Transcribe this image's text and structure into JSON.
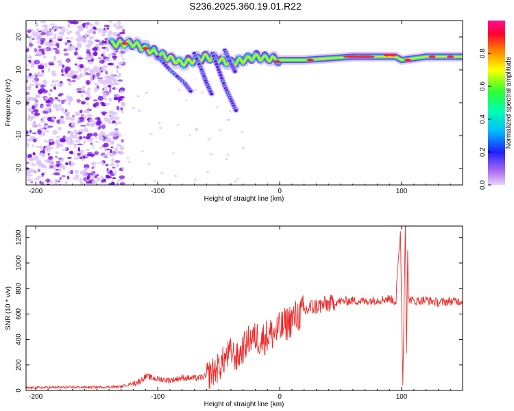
{
  "page": {
    "title": "S236.2025.360.19.01.R22",
    "colors": {
      "snr_line": "#ee2a2a",
      "frame": "#000000",
      "blob": "#7a10e8",
      "blob_light": "#d9c2f7"
    }
  },
  "chart_data": [
    {
      "id": "spectrogram",
      "type": "heatmap",
      "title": "",
      "xlabel": "Height of straight line (km)",
      "ylabel": "Frequency (Hz)",
      "xlim": [
        -208,
        150
      ],
      "ylim": [
        -25,
        25
      ],
      "xticks": [
        -200,
        -100,
        0,
        100
      ],
      "yticks": [
        -20,
        -10,
        0,
        10,
        20
      ],
      "colorbar": {
        "label": "Normalized spectral amplitude",
        "range": [
          0.0,
          1.0
        ],
        "ticks": [
          0.0,
          0.2,
          0.4,
          0.6,
          0.8
        ],
        "tick_labels": [
          "0.0",
          "0.2",
          "0.4",
          "0.6",
          "0.8"
        ]
      },
      "description_series": [
        {
          "name": "main_frequency_ridge",
          "x": [
            -140,
            -120,
            -100,
            -80,
            -60,
            -40,
            -20,
            0,
            20,
            40,
            60,
            80,
            95,
            100,
            120,
            150
          ],
          "frequency_hz": [
            18,
            18,
            15,
            12,
            14,
            12,
            14,
            13,
            13,
            13.5,
            14,
            14,
            14,
            13,
            14,
            14
          ]
        },
        {
          "name": "secondary_branches",
          "x": [
            -75,
            -68,
            -60,
            -52,
            -45,
            -40,
            -36
          ],
          "frequency_hz": [
            5,
            9,
            4,
            2,
            6,
            3,
            -3
          ]
        }
      ]
    },
    {
      "id": "snr",
      "type": "line",
      "title": "",
      "xlabel": "Height of straight line (km)",
      "ylabel": "SNR (10 * v/v)",
      "xlim": [
        -208,
        150
      ],
      "ylim": [
        0,
        1290
      ],
      "xticks": [
        -200,
        -100,
        0,
        100
      ],
      "yticks": [
        0,
        200,
        400,
        600,
        800,
        1000,
        1200
      ],
      "series": [
        {
          "name": "SNR",
          "x": [
            -208,
            -180,
            -150,
            -130,
            -115,
            -110,
            -100,
            -90,
            -80,
            -70,
            -60,
            -50,
            -45,
            -40,
            -35,
            -30,
            -25,
            -20,
            -15,
            -10,
            -5,
            0,
            5,
            10,
            15,
            20,
            25,
            30,
            40,
            50,
            60,
            70,
            80,
            90,
            95,
            98,
            100,
            102,
            104,
            106,
            110,
            120,
            130,
            140,
            150
          ],
          "values": [
            20,
            25,
            25,
            30,
            70,
            110,
            90,
            80,
            100,
            95,
            110,
            180,
            250,
            300,
            250,
            330,
            400,
            420,
            400,
            430,
            450,
            480,
            520,
            560,
            590,
            620,
            650,
            660,
            680,
            700,
            705,
            700,
            710,
            720,
            700,
            650,
            600,
            700,
            650,
            720,
            700,
            710,
            690,
            700,
            700
          ]
        },
        {
          "name": "SNR_spikes",
          "x": [
            96,
            99,
            101,
            103,
            104,
            105
          ],
          "values": [
            850,
            1250,
            40,
            1290,
            290,
            1100
          ]
        }
      ]
    }
  ]
}
